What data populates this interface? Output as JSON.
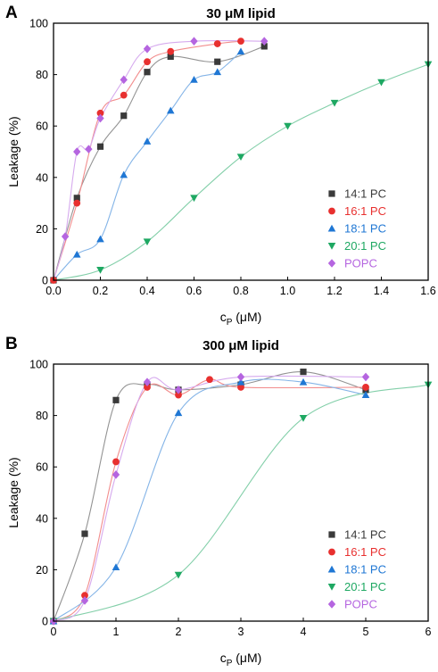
{
  "chart_data": [
    {
      "type": "scatter",
      "panel": "A",
      "title": "30 μM lipid",
      "xlabel_main": "c",
      "xlabel_sub": "P",
      "xlabel_unit": " (μM)",
      "ylabel": "Leakage (%)",
      "xlim": [
        0,
        1.6
      ],
      "ylim": [
        0,
        100
      ],
      "xticks": [
        "0.0",
        "0.2",
        "0.4",
        "0.6",
        "0.8",
        "1.0",
        "1.2",
        "1.4",
        "1.6"
      ],
      "yticks": [
        "0",
        "20",
        "40",
        "60",
        "80",
        "100"
      ],
      "legend_position": "bottom-right",
      "series": [
        {
          "name": "14:1 PC",
          "color": "#3a3a3a",
          "marker": "square",
          "x": [
            0,
            0.1,
            0.2,
            0.3,
            0.4,
            0.5,
            0.7,
            0.9
          ],
          "y": [
            0,
            32,
            52,
            64,
            81,
            87,
            85,
            91
          ]
        },
        {
          "name": "16:1 PC",
          "color": "#e8302f",
          "marker": "circle",
          "x": [
            0,
            0.1,
            0.2,
            0.3,
            0.4,
            0.5,
            0.7,
            0.8
          ],
          "y": [
            0,
            30,
            65,
            72,
            85,
            89,
            92,
            93
          ]
        },
        {
          "name": "18:1 PC",
          "color": "#1f77d4",
          "marker": "triangle-up",
          "x": [
            0.1,
            0.2,
            0.3,
            0.4,
            0.5,
            0.6,
            0.7,
            0.8
          ],
          "y": [
            10,
            16,
            41,
            54,
            66,
            78,
            81,
            89
          ]
        },
        {
          "name": "20:1 PC",
          "color": "#1ea862",
          "marker": "triangle-down",
          "x": [
            0.2,
            0.4,
            0.6,
            0.8,
            1.0,
            1.2,
            1.4,
            1.6
          ],
          "y": [
            4,
            15,
            32,
            48,
            60,
            69,
            77,
            84
          ]
        },
        {
          "name": "POPC",
          "color": "#b565e0",
          "marker": "diamond",
          "x": [
            0.05,
            0.1,
            0.15,
            0.2,
            0.3,
            0.4,
            0.6,
            0.9
          ],
          "y": [
            17,
            50,
            51,
            63,
            78,
            90,
            93,
            93
          ]
        }
      ]
    },
    {
      "type": "scatter",
      "panel": "B",
      "title": "300 μM lipid",
      "xlabel_main": "c",
      "xlabel_sub": "P",
      "xlabel_unit": " (μM)",
      "ylabel": "Leakage (%)",
      "xlim": [
        0,
        6
      ],
      "ylim": [
        0,
        100
      ],
      "xticks": [
        "0",
        "1",
        "2",
        "3",
        "4",
        "5",
        "6"
      ],
      "yticks": [
        "0",
        "20",
        "40",
        "60",
        "80",
        "100"
      ],
      "legend_position": "bottom-right",
      "series": [
        {
          "name": "14:1 PC",
          "color": "#3a3a3a",
          "marker": "square",
          "x": [
            0,
            0.5,
            1,
            1.5,
            2,
            3,
            4,
            5
          ],
          "y": [
            0,
            34,
            86,
            92,
            90,
            92,
            97,
            90
          ]
        },
        {
          "name": "16:1 PC",
          "color": "#e8302f",
          "marker": "circle",
          "x": [
            0,
            0.5,
            1,
            1.5,
            2,
            2.5,
            3,
            5
          ],
          "y": [
            0,
            10,
            62,
            91,
            88,
            94,
            91,
            91
          ]
        },
        {
          "name": "18:1 PC",
          "color": "#1f77d4",
          "marker": "triangle-up",
          "x": [
            0,
            1,
            2,
            3,
            4,
            5
          ],
          "y": [
            0,
            21,
            81,
            93,
            93,
            88
          ]
        },
        {
          "name": "20:1 PC",
          "color": "#1ea862",
          "marker": "triangle-down",
          "x": [
            0,
            2,
            4,
            6
          ],
          "y": [
            0,
            18,
            79,
            92
          ]
        },
        {
          "name": "POPC",
          "color": "#b565e0",
          "marker": "diamond",
          "x": [
            0,
            0.5,
            1,
            1.5,
            2,
            3,
            5
          ],
          "y": [
            0,
            8,
            57,
            93,
            90,
            95,
            95
          ]
        }
      ]
    }
  ]
}
